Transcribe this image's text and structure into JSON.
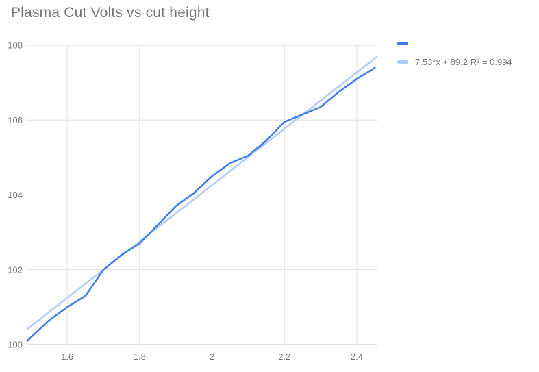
{
  "chart_data": {
    "type": "line",
    "title": "Plasma Cut Volts vs cut height",
    "xlabel": "",
    "ylabel": "",
    "x": [
      1.49,
      1.5,
      1.55,
      1.6,
      1.65,
      1.7,
      1.75,
      1.8,
      1.85,
      1.9,
      1.95,
      2.0,
      2.05,
      2.1,
      2.15,
      2.2,
      2.25,
      2.3,
      2.35,
      2.4,
      2.45
    ],
    "series": [
      {
        "name": "",
        "color": "#3d7be8",
        "values": [
          100.1,
          100.2,
          100.65,
          101.0,
          101.3,
          102.0,
          102.4,
          102.7,
          103.2,
          103.7,
          104.05,
          104.5,
          104.85,
          105.05,
          105.45,
          105.95,
          106.15,
          106.35,
          106.75,
          107.1,
          107.4
        ]
      }
    ],
    "trendline": {
      "label": "7.53*x + 89.2 R² = 0.994",
      "slope": 7.53,
      "intercept": 89.2,
      "r_squared": 0.994,
      "color": "#aecbfa"
    },
    "x_ticks": [
      1.6,
      1.8,
      2,
      2.2,
      2.4
    ],
    "y_ticks": [
      100,
      102,
      104,
      106,
      108
    ],
    "xlim": [
      1.49,
      2.455
    ],
    "ylim": [
      100,
      108
    ],
    "grid": true,
    "legend_position": "right"
  },
  "legend": [
    {
      "label": ""
    },
    {
      "label": "7.53*x + 89.2 R² = 0.994"
    }
  ],
  "colors": {
    "series": "#3d7be8",
    "trendline": "#aecbfa",
    "grid": "#e0e0e0",
    "axis": "#c4c4c4",
    "tick_text": "#757575",
    "title_text": "#757575",
    "background": "#ffffff"
  }
}
